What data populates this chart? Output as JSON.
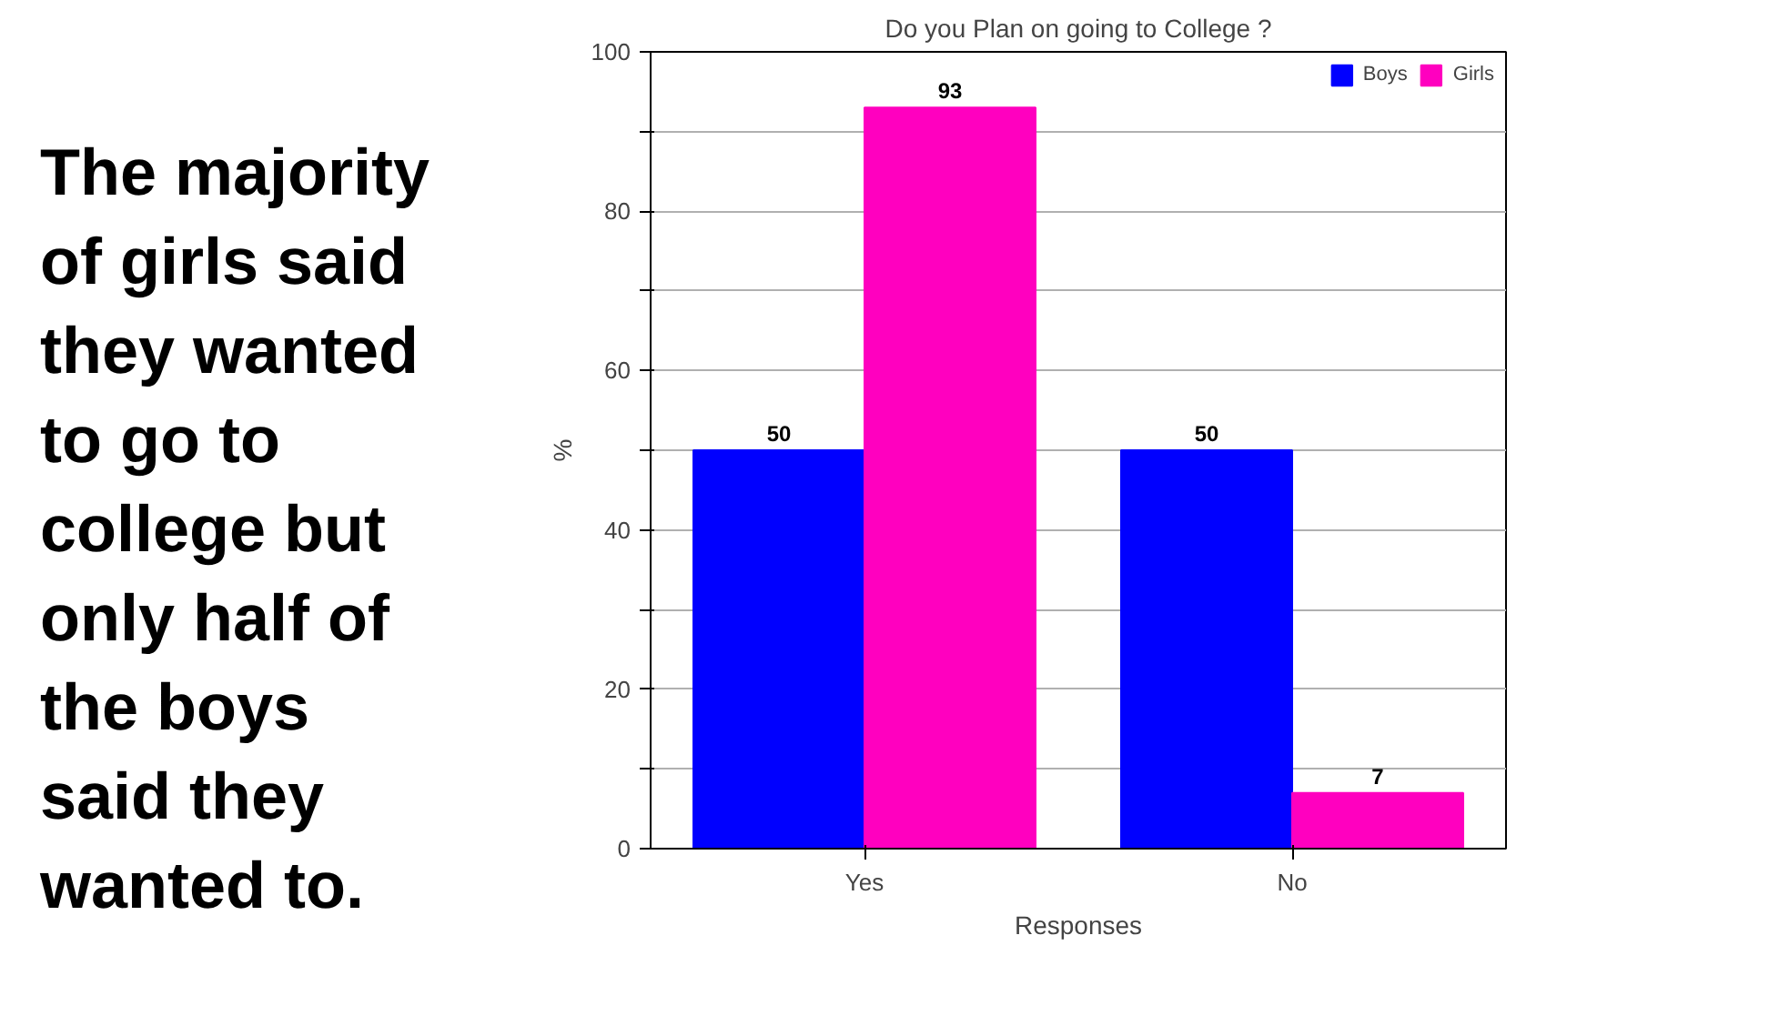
{
  "chart_data": {
    "type": "bar",
    "title": "Do you Plan on going to College ?",
    "xlabel": "Responses",
    "ylabel": "%",
    "annotations": [
      "The majority\nof girls said\nthey wanted\nto go to\ncollege but\nonly half of\nthe boys\nsaid they\nwanted to."
    ],
    "categories": [
      "Yes",
      "No"
    ],
    "series": [
      {
        "name": "Boys",
        "color": "#0000ff",
        "values": [
          50,
          50
        ]
      },
      {
        "name": "Girls",
        "color": "#ff00bf",
        "values": [
          93,
          7
        ]
      }
    ],
    "ylim": [
      0,
      100
    ],
    "yticks": [
      0,
      {
        "value": 10,
        "label": null
      },
      20,
      {
        "value": 30,
        "label": null
      },
      40,
      {
        "value": 50,
        "label": null
      },
      60,
      {
        "value": 70,
        "label": null
      },
      80,
      {
        "value": 90,
        "label": null
      },
      100
    ],
    "grid": "y",
    "data_labels": true,
    "legend": "top right"
  }
}
